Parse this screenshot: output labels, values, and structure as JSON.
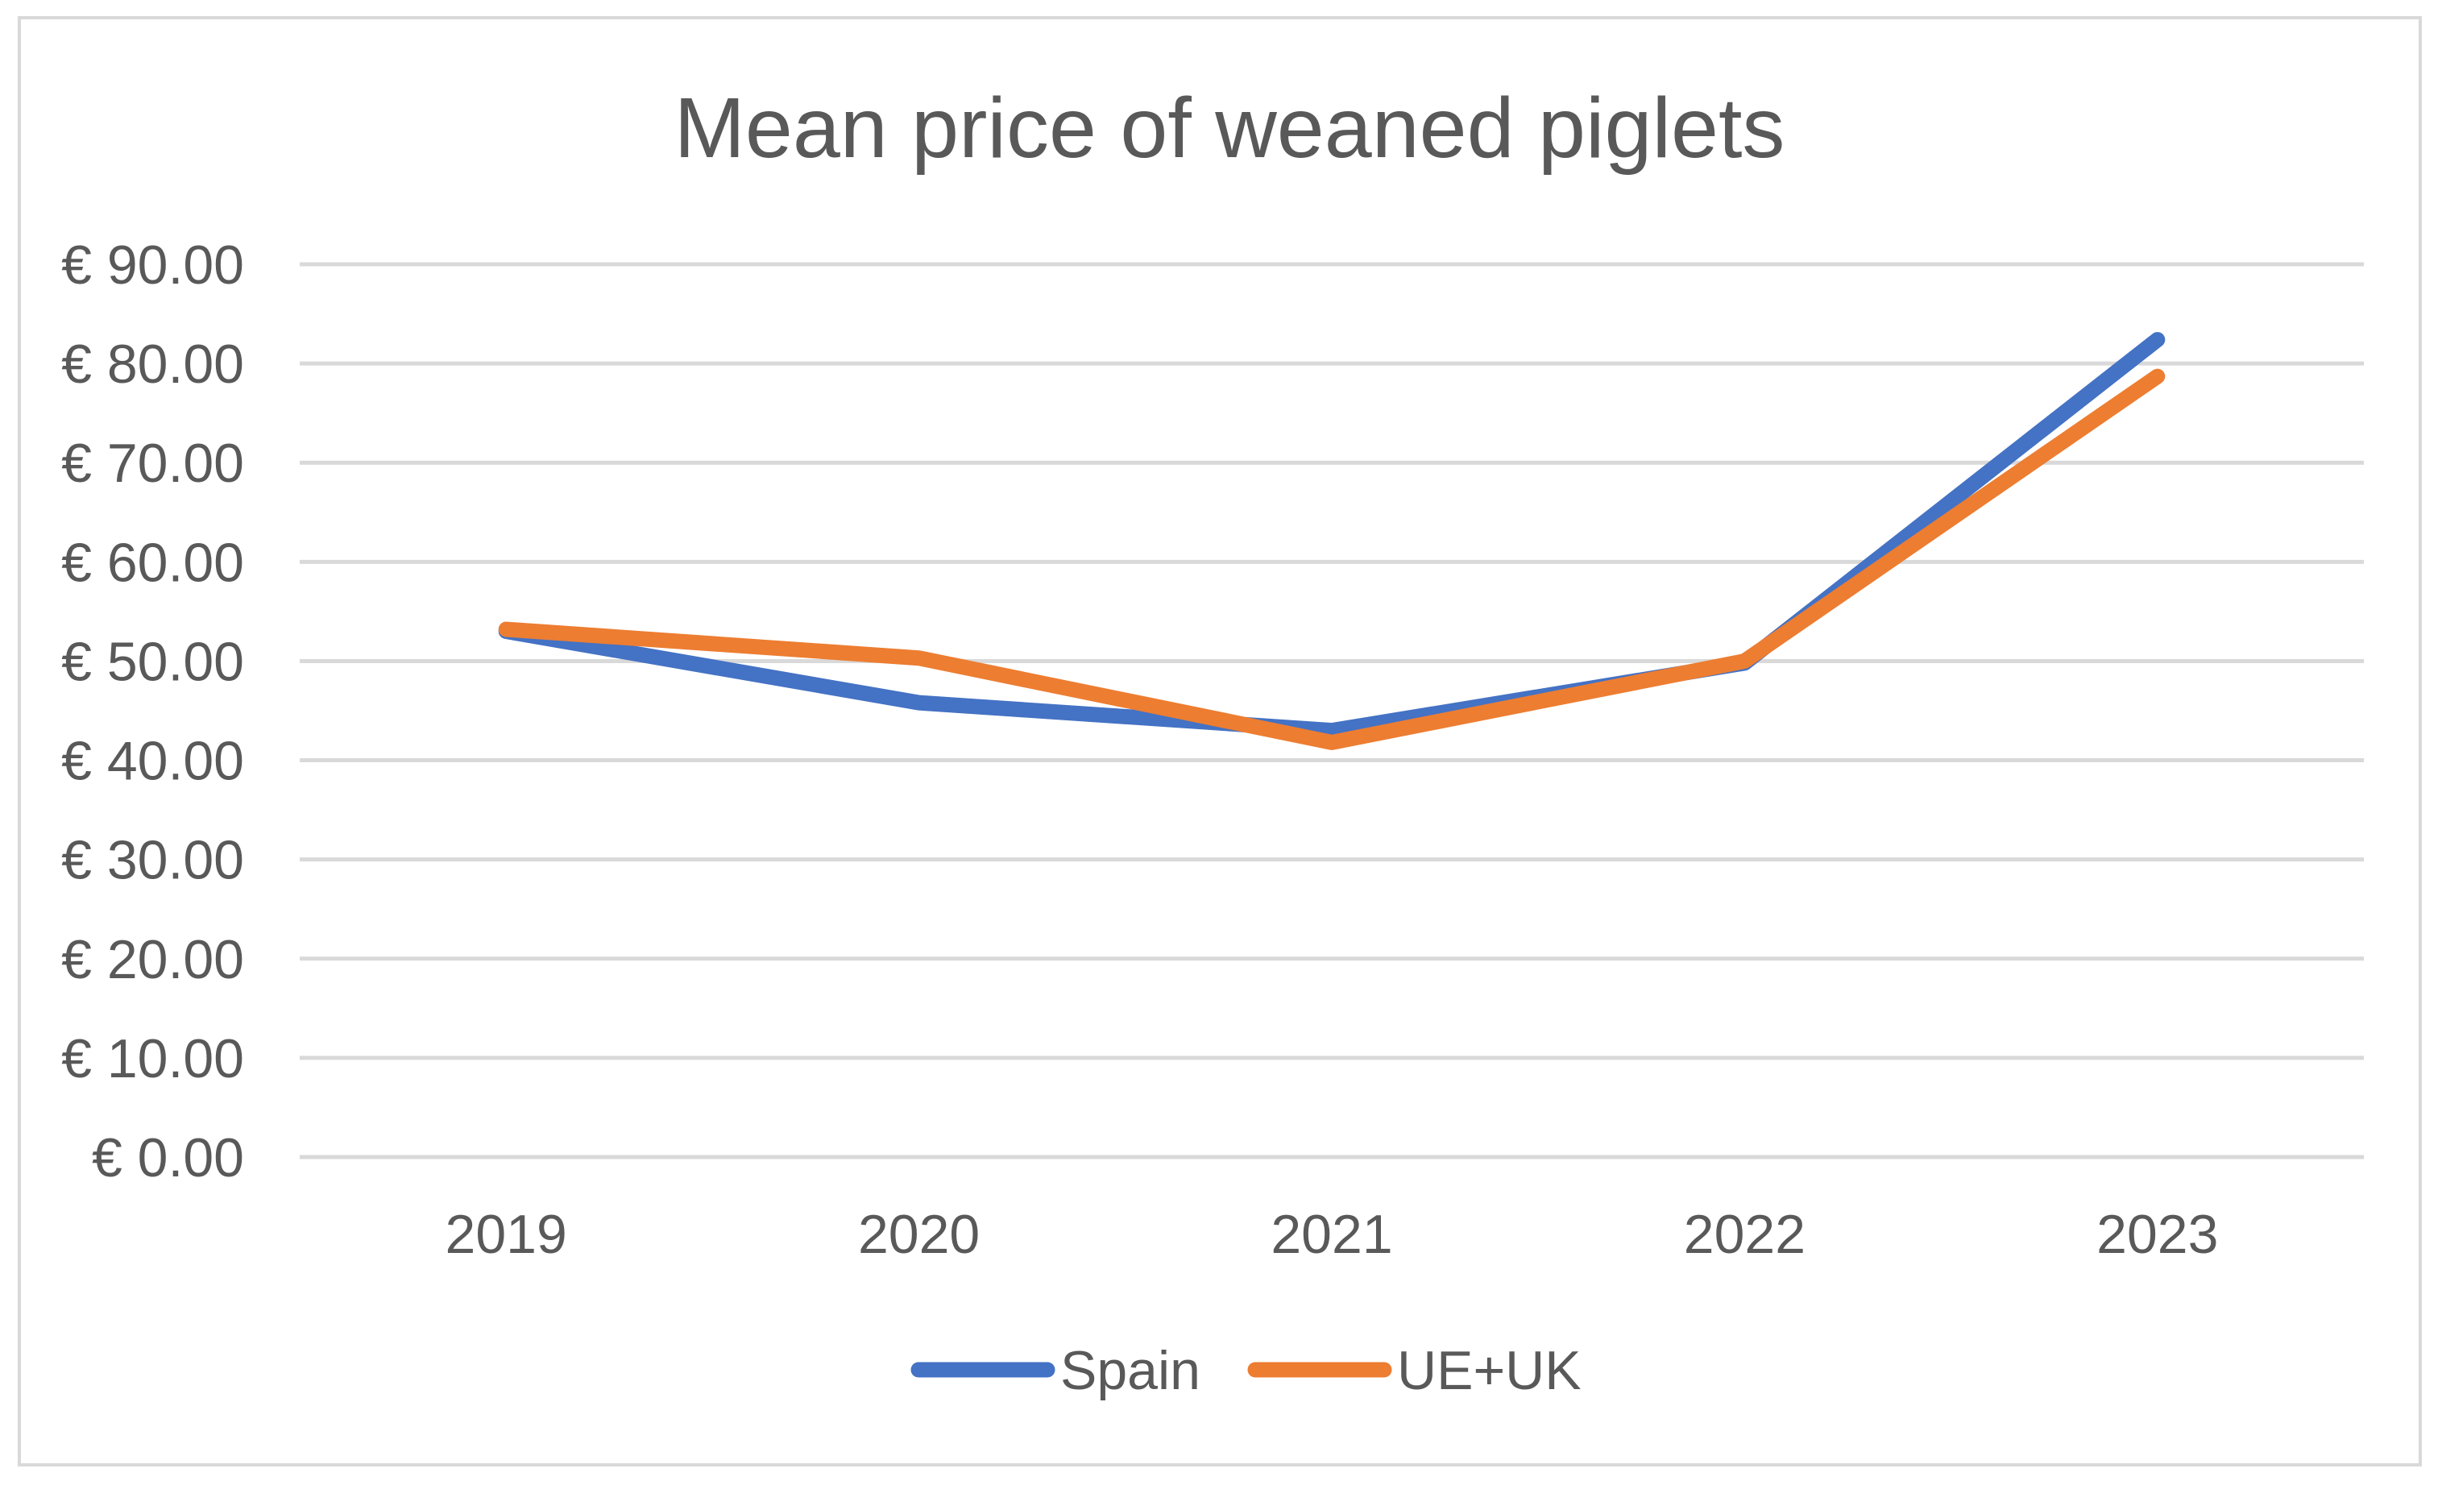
{
  "chart_data": {
    "type": "line",
    "title": "Mean price of weaned piglets",
    "xlabel": "",
    "ylabel": "",
    "categories": [
      "2019",
      "2020",
      "2021",
      "2022",
      "2023"
    ],
    "y_ticks": [
      "€ 0.00",
      "€ 10.00",
      "€ 20.00",
      "€ 30.00",
      "€ 40.00",
      "€ 50.00",
      "€ 60.00",
      "€ 70.00",
      "€ 80.00",
      "€ 90.00"
    ],
    "ylim": [
      0,
      90
    ],
    "grid": true,
    "legend_position": "bottom",
    "series": [
      {
        "name": "Spain",
        "color": "#4472C4",
        "values": [
          53.0,
          45.8,
          43.0,
          49.8,
          82.4
        ]
      },
      {
        "name": "UE+UK",
        "color": "#ED7D31",
        "values": [
          53.2,
          50.3,
          41.8,
          50.0,
          78.7
        ]
      }
    ]
  }
}
